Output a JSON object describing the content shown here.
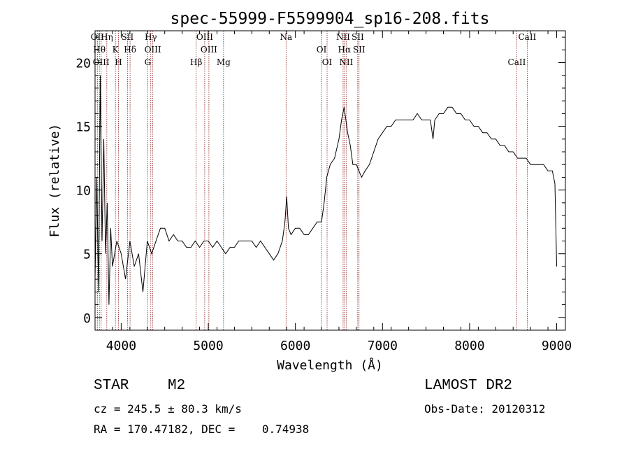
{
  "chart_data": {
    "type": "line",
    "title": "spec-55999-F5599904_sp16-208.fits",
    "xlabel": "Wavelength (Å)",
    "ylabel": "Flux (relative)",
    "xlim": [
      3700,
      9100
    ],
    "ylim": [
      -1,
      22.5
    ],
    "x_ticks": [
      4000,
      5000,
      6000,
      7000,
      8000,
      9000
    ],
    "y_ticks": [
      0,
      5,
      10,
      15,
      20
    ],
    "grid": false,
    "line_color": "#000000",
    "marker_color": "#8b1a1a",
    "series": [
      {
        "x": [
          3700,
          3720,
          3740,
          3760,
          3780,
          3800,
          3820,
          3840,
          3860,
          3880,
          3900,
          3950,
          4000,
          4050,
          4100,
          4150,
          4200,
          4250,
          4300,
          4350,
          4400,
          4450,
          4500,
          4550,
          4600,
          4650,
          4700,
          4750,
          4800,
          4850,
          4900,
          4950,
          5000,
          5050,
          5100,
          5150,
          5200,
          5250,
          5300,
          5350,
          5400,
          5450,
          5500,
          5550,
          5600,
          5650,
          5700,
          5750,
          5800,
          5850,
          5880,
          5900,
          5920,
          5950,
          6000,
          6050,
          6100,
          6150,
          6200,
          6250,
          6300,
          6330,
          6360,
          6400,
          6450,
          6500,
          6530,
          6560,
          6580,
          6600,
          6630,
          6660,
          6700,
          6730,
          6760,
          6800,
          6850,
          6900,
          6950,
          7000,
          7050,
          7100,
          7150,
          7200,
          7250,
          7300,
          7350,
          7400,
          7450,
          7500,
          7550,
          7580,
          7600,
          7650,
          7700,
          7750,
          7800,
          7850,
          7900,
          7950,
          8000,
          8050,
          8100,
          8150,
          8200,
          8250,
          8300,
          8350,
          8400,
          8450,
          8500,
          8550,
          8600,
          8650,
          8700,
          8750,
          8800,
          8850,
          8900,
          8950,
          8980,
          9000
        ],
        "y": [
          3,
          11,
          2,
          19,
          6,
          14,
          5,
          9,
          1,
          7,
          4,
          6,
          5,
          3,
          6,
          4,
          5,
          2,
          6,
          5,
          6,
          7,
          7,
          6,
          6.5,
          6,
          6,
          5.5,
          5.5,
          6,
          5.5,
          6,
          6,
          5.5,
          6,
          5.5,
          5,
          5.5,
          5.5,
          6,
          6,
          6,
          6,
          5.5,
          6,
          5.5,
          5,
          4.5,
          5,
          6,
          7.5,
          9.5,
          7,
          6.5,
          7,
          7,
          6.5,
          6.5,
          7,
          7.5,
          7.5,
          9,
          11,
          12,
          12.5,
          14,
          15.5,
          16.5,
          15.5,
          14.5,
          13.5,
          12,
          12,
          11.5,
          11,
          11.5,
          12,
          13,
          14,
          14.5,
          15,
          15,
          15.5,
          15.5,
          15.5,
          15.5,
          15.5,
          16,
          15.5,
          15.5,
          15.5,
          14,
          15.5,
          16,
          16,
          16.5,
          16.5,
          16,
          16,
          15.5,
          15.5,
          15,
          15,
          14.5,
          14.5,
          14,
          14,
          13.5,
          13.5,
          13,
          13,
          12.5,
          12.5,
          12.5,
          12,
          12,
          12,
          12,
          11.5,
          11.5,
          10.5,
          4
        ]
      }
    ],
    "lines": [
      {
        "wl": 3727,
        "labels": [
          "OII"
        ]
      },
      {
        "wl": 3750,
        "labels": [
          "Hθ"
        ]
      },
      {
        "wl": 3770,
        "labels": [
          "OIII"
        ]
      },
      {
        "wl": 3835,
        "labels": [
          "Hη"
        ]
      },
      {
        "wl": 3934,
        "labels": [
          "K"
        ]
      },
      {
        "wl": 3969,
        "labels": [
          "H"
        ]
      },
      {
        "wl": 4072,
        "labels": [
          "SII"
        ]
      },
      {
        "wl": 4102,
        "labels": [
          "Hδ"
        ]
      },
      {
        "wl": 4305,
        "labels": [
          "G"
        ]
      },
      {
        "wl": 4340,
        "labels": [
          "Hγ"
        ]
      },
      {
        "wl": 4363,
        "labels": [
          "OIII"
        ]
      },
      {
        "wl": 4861,
        "labels": [
          "Hβ"
        ]
      },
      {
        "wl": 4959,
        "labels": [
          "OIII"
        ]
      },
      {
        "wl": 5007,
        "labels": [
          "OIII"
        ]
      },
      {
        "wl": 5175,
        "labels": [
          "Mg"
        ]
      },
      {
        "wl": 5893,
        "labels": [
          "Na"
        ]
      },
      {
        "wl": 6300,
        "labels": [
          "OI"
        ]
      },
      {
        "wl": 6364,
        "labels": [
          "OI"
        ]
      },
      {
        "wl": 6548,
        "labels": [
          "NII"
        ]
      },
      {
        "wl": 6563,
        "labels": [
          "Hα"
        ]
      },
      {
        "wl": 6583,
        "labels": [
          "NII"
        ]
      },
      {
        "wl": 6716,
        "labels": [
          "SII"
        ]
      },
      {
        "wl": 6731,
        "labels": [
          "SII"
        ]
      },
      {
        "wl": 8542,
        "labels": [
          "CaII"
        ]
      },
      {
        "wl": 8662,
        "labels": [
          "CaII"
        ]
      }
    ]
  },
  "info": {
    "class": "STAR",
    "subclass": "M2",
    "cz_line": "cz = 245.5 ± 80.3 km/s",
    "coord_line": "RA = 170.47182, DEC =    0.74938",
    "survey": "LAMOST DR2",
    "obs_date": "Obs-Date: 20120312"
  }
}
